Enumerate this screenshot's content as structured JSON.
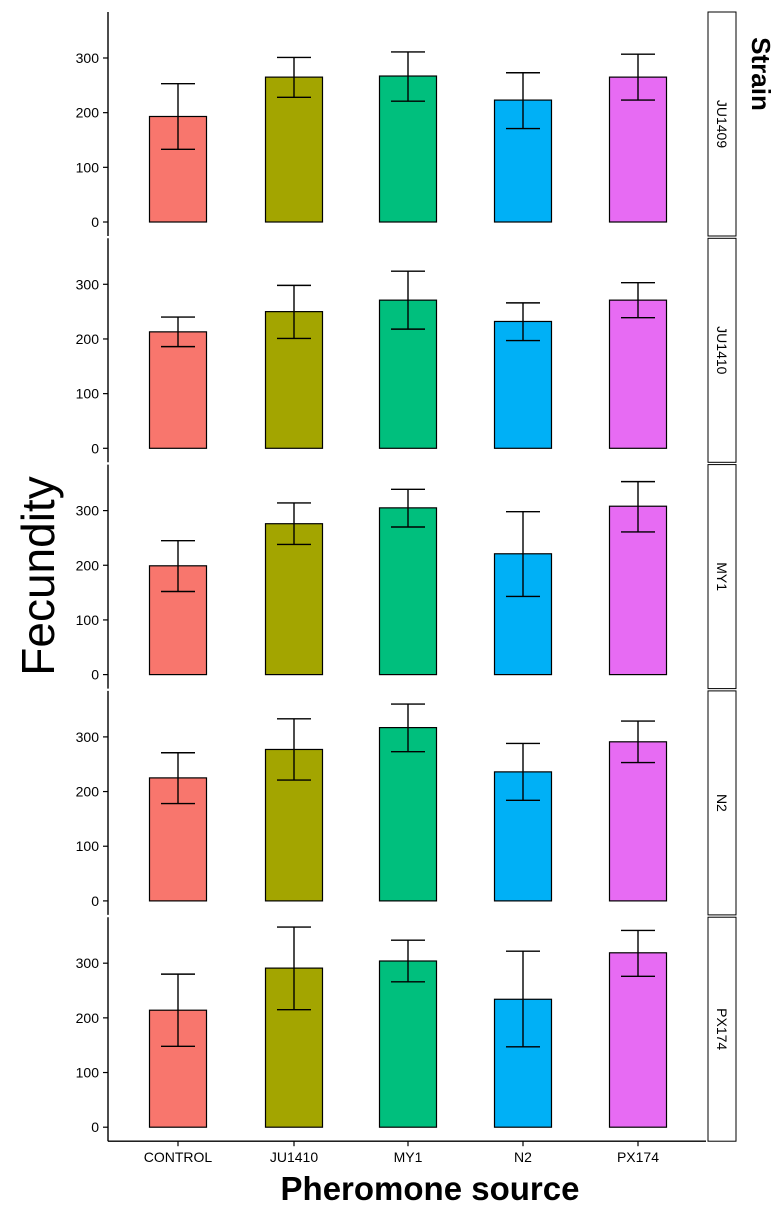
{
  "chart_data": {
    "type": "bar",
    "ylabel": "Fecundity",
    "xlabel": "Pheromone source",
    "facet_title": "Strain",
    "categories": [
      "CONTROL",
      "JU1410",
      "MY1",
      "N2",
      "PX174"
    ],
    "colors": [
      "#F8766D",
      "#A3A500",
      "#00BF7D",
      "#00B0F6",
      "#E76BF3"
    ],
    "yticks": [
      0,
      100,
      200,
      300
    ],
    "ylim": [
      0,
      375
    ],
    "grid": false,
    "panels": [
      {
        "strain": "JU1409",
        "values": [
          193,
          265,
          267,
          223,
          265
        ],
        "err_low": [
          133,
          228,
          221,
          171,
          223
        ],
        "err_high": [
          253,
          301,
          311,
          273,
          307
        ]
      },
      {
        "strain": "JU1410",
        "values": [
          213,
          250,
          271,
          232,
          271
        ],
        "err_low": [
          186,
          201,
          218,
          197,
          239
        ],
        "err_high": [
          240,
          298,
          324,
          266,
          303
        ]
      },
      {
        "strain": "MY1",
        "values": [
          199,
          276,
          305,
          221,
          308
        ],
        "err_low": [
          152,
          238,
          270,
          143,
          261
        ],
        "err_high": [
          245,
          314,
          339,
          298,
          353
        ]
      },
      {
        "strain": "N2",
        "values": [
          225,
          277,
          317,
          236,
          291
        ],
        "err_low": [
          178,
          221,
          273,
          184,
          253
        ],
        "err_high": [
          271,
          333,
          360,
          288,
          329
        ]
      },
      {
        "strain": "PX174",
        "values": [
          214,
          291,
          304,
          234,
          319
        ],
        "err_low": [
          148,
          215,
          266,
          147,
          276
        ],
        "err_high": [
          280,
          366,
          342,
          322,
          360
        ]
      }
    ]
  }
}
